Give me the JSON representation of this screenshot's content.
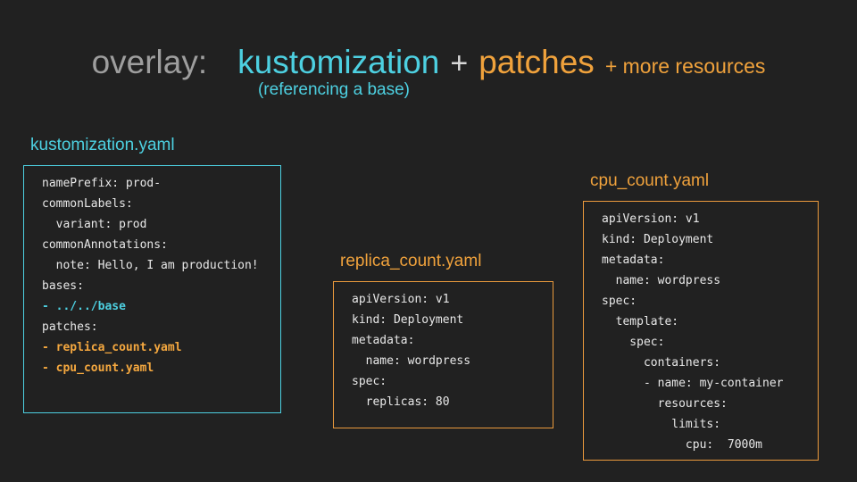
{
  "title": {
    "prefix": "overlay:",
    "term1": "kustomization",
    "plus": "+",
    "term2": "patches",
    "suffix": "+ more resources",
    "subtitle": "(referencing a base)"
  },
  "colors": {
    "background": "#212121",
    "cyan_accent": "#4dd0e1",
    "orange_accent": "#f0a23c",
    "title_gray": "#9e9e9e",
    "code_text": "#e8e8e8"
  },
  "panels": [
    {
      "label": "kustomization.yaml",
      "accent": "cyan",
      "code": [
        {
          "text": "namePrefix: prod-",
          "hl": "none"
        },
        {
          "text": "commonLabels:",
          "hl": "none"
        },
        {
          "text": "  variant: prod",
          "hl": "none"
        },
        {
          "text": "commonAnnotations:",
          "hl": "none"
        },
        {
          "text": "  note: Hello, I am production!",
          "hl": "none"
        },
        {
          "text": "bases:",
          "hl": "none"
        },
        {
          "text": "- ../../base",
          "hl": "cyan"
        },
        {
          "text": "patches:",
          "hl": "none"
        },
        {
          "text": "- replica_count.yaml",
          "hl": "orange"
        },
        {
          "text": "- cpu_count.yaml",
          "hl": "orange"
        }
      ]
    },
    {
      "label": "replica_count.yaml",
      "accent": "orange",
      "code": [
        {
          "text": "apiVersion: v1",
          "hl": "none"
        },
        {
          "text": "kind: Deployment",
          "hl": "none"
        },
        {
          "text": "metadata:",
          "hl": "none"
        },
        {
          "text": "  name: wordpress",
          "hl": "none"
        },
        {
          "text": "spec:",
          "hl": "none"
        },
        {
          "text": "  replicas: 80",
          "hl": "none"
        }
      ]
    },
    {
      "label": "cpu_count.yaml",
      "accent": "orange",
      "code": [
        {
          "text": "apiVersion: v1",
          "hl": "none"
        },
        {
          "text": "kind: Deployment",
          "hl": "none"
        },
        {
          "text": "metadata:",
          "hl": "none"
        },
        {
          "text": "  name: wordpress",
          "hl": "none"
        },
        {
          "text": "spec:",
          "hl": "none"
        },
        {
          "text": "  template:",
          "hl": "none"
        },
        {
          "text": "    spec:",
          "hl": "none"
        },
        {
          "text": "      containers:",
          "hl": "none"
        },
        {
          "text": "      - name: my-container",
          "hl": "none"
        },
        {
          "text": "        resources:",
          "hl": "none"
        },
        {
          "text": "          limits:",
          "hl": "none"
        },
        {
          "text": "            cpu:  7000m",
          "hl": "none"
        }
      ]
    }
  ]
}
